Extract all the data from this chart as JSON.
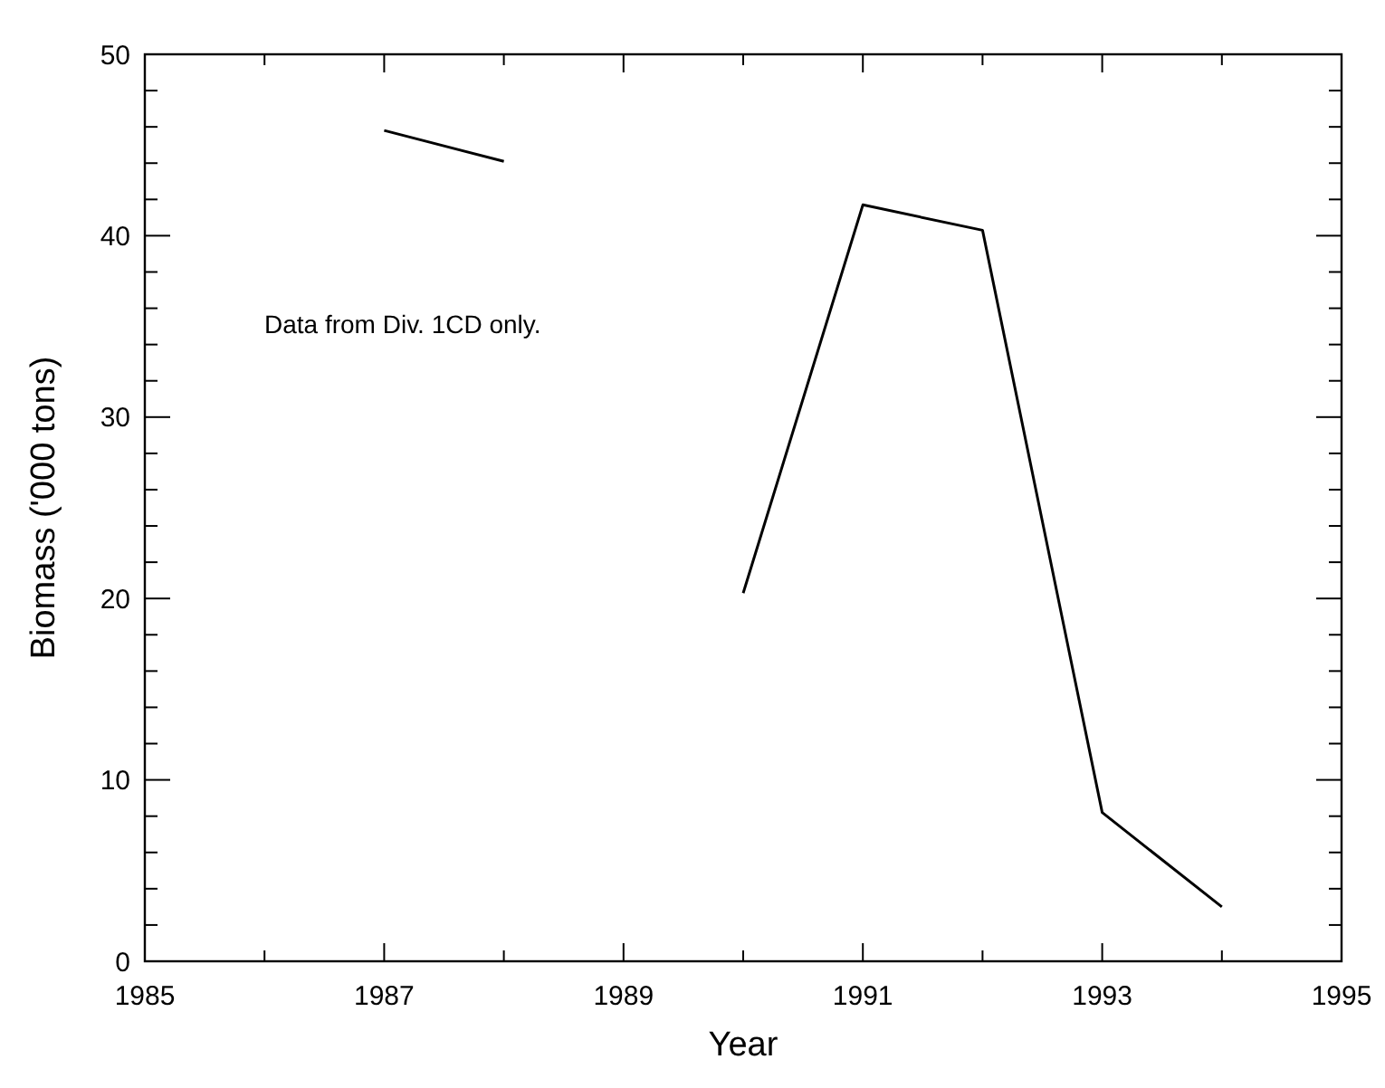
{
  "chart_data": {
    "type": "line",
    "xlabel": "Year",
    "ylabel": "Biomass ('000 tons)",
    "annotations": [
      "Data from Div. 1CD only."
    ],
    "x": [
      1987,
      1988,
      1989,
      1990,
      1991,
      1992,
      1993,
      1994
    ],
    "series": [
      {
        "color": "#000000",
        "values": [
          45.8,
          44.1,
          null,
          20.3,
          41.7,
          40.3,
          8.2,
          3.0
        ]
      }
    ],
    "xlim": [
      1985,
      1995
    ],
    "xticks": [
      1985,
      {
        "value": 1986,
        "label": null
      },
      1987,
      {
        "value": 1988,
        "label": null
      },
      1989,
      {
        "value": 1990,
        "label": null
      },
      1991,
      {
        "value": 1992,
        "label": null
      },
      1993,
      {
        "value": 1994,
        "label": null
      },
      1995
    ],
    "ylim": [
      0,
      50
    ],
    "yticks": [
      0,
      {
        "value": 2,
        "label": null
      },
      {
        "value": 4,
        "label": null
      },
      {
        "value": 6,
        "label": null
      },
      {
        "value": 8,
        "label": null
      },
      10,
      {
        "value": 12,
        "label": null
      },
      {
        "value": 14,
        "label": null
      },
      {
        "value": 16,
        "label": null
      },
      {
        "value": 18,
        "label": null
      },
      20,
      {
        "value": 22,
        "label": null
      },
      {
        "value": 24,
        "label": null
      },
      {
        "value": 26,
        "label": null
      },
      {
        "value": 28,
        "label": null
      },
      30,
      {
        "value": 32,
        "label": null
      },
      {
        "value": 34,
        "label": null
      },
      {
        "value": 36,
        "label": null
      },
      {
        "value": 38,
        "label": null
      },
      40,
      {
        "value": 42,
        "label": null
      },
      {
        "value": 44,
        "label": null
      },
      {
        "value": 46,
        "label": null
      },
      {
        "value": 48,
        "label": null
      },
      50
    ],
    "grid": false,
    "marker": "none",
    "line_style": "solid"
  }
}
